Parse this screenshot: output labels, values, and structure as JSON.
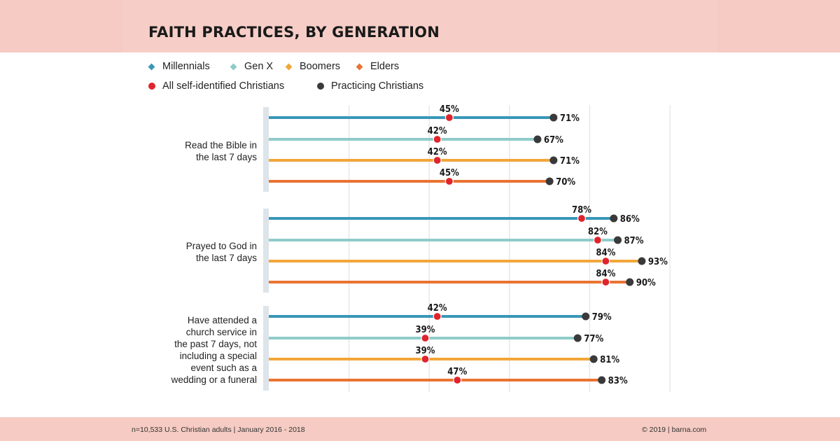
{
  "title": "FAITH PRACTICES, BY GENERATION",
  "legend": {
    "series": [
      {
        "name": "Millennials",
        "color": "#3a97b7"
      },
      {
        "name": "Gen X",
        "color": "#8ecbc8"
      },
      {
        "name": "Boomers",
        "color": "#f2a63a"
      },
      {
        "name": "Elders",
        "color": "#ea7332"
      }
    ],
    "markers": [
      {
        "name": "All self-identified Christians",
        "color": "#e0242c"
      },
      {
        "name": "Practicing Christians",
        "color": "#3a3a3a"
      }
    ]
  },
  "footer": {
    "note": "n=10,533 U.S. Christian adults  |  January 2016 - 2018",
    "copyright": "© 2019 | barna.com"
  },
  "chart_data": {
    "type": "dot-range",
    "title": "FAITH PRACTICES, BY GENERATION",
    "value_unit": "%",
    "xlim": [
      0,
      100
    ],
    "grid": true,
    "categories": [
      "Read the Bible in the last 7 days",
      "Prayed to God in the last 7 days",
      "Have attended a church service in the past 7 days, not including a special event such as a wedding or a funeral"
    ],
    "category_lines": [
      [
        "Read the Bible in",
        "the last 7 days"
      ],
      [
        "Prayed to God in",
        "the last 7 days"
      ],
      [
        "Have attended a",
        "church service in",
        "the past 7 days, not",
        "including a special",
        "event such as a",
        "wedding or a funeral"
      ]
    ],
    "series": [
      {
        "name": "Millennials",
        "all": [
          45,
          78,
          42
        ],
        "practicing": [
          71,
          86,
          79
        ]
      },
      {
        "name": "Gen X",
        "all": [
          42,
          82,
          39
        ],
        "practicing": [
          67,
          87,
          77
        ]
      },
      {
        "name": "Boomers",
        "all": [
          42,
          84,
          39
        ],
        "practicing": [
          71,
          93,
          81
        ]
      },
      {
        "name": "Elders",
        "all": [
          45,
          84,
          47
        ],
        "practicing": [
          70,
          90,
          83
        ]
      }
    ]
  }
}
